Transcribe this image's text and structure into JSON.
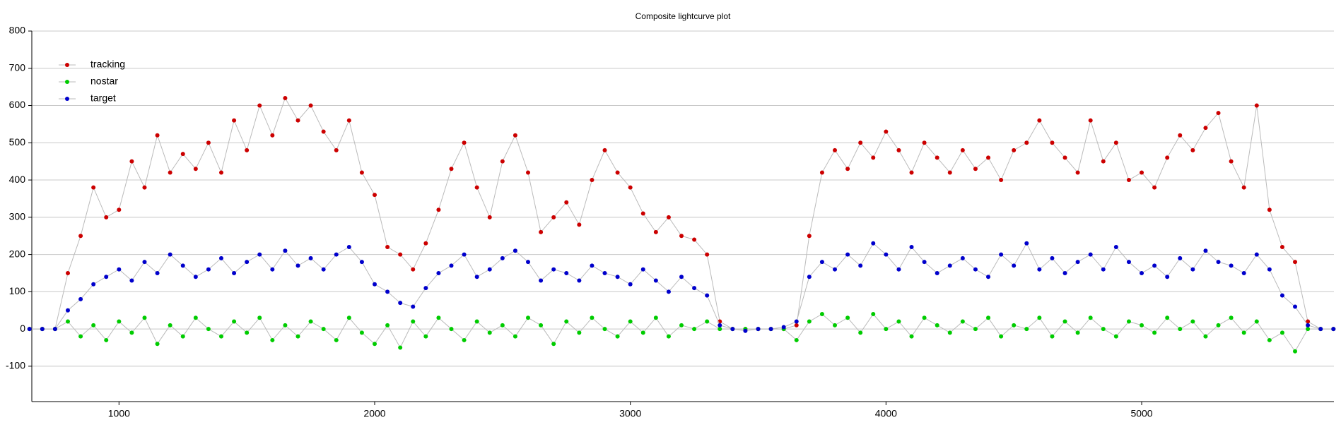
{
  "chart_data": {
    "type": "scatter",
    "title": "Composite lightcurve plot",
    "x": [
      650,
      700,
      750,
      800,
      850,
      900,
      950,
      1000,
      1050,
      1100,
      1150,
      1200,
      1250,
      1300,
      1350,
      1400,
      1450,
      1500,
      1550,
      1600,
      1650,
      1700,
      1750,
      1800,
      1850,
      1900,
      1950,
      2000,
      2050,
      2100,
      2150,
      2200,
      2250,
      2300,
      2350,
      2400,
      2450,
      2500,
      2550,
      2600,
      2650,
      2700,
      2750,
      2800,
      2850,
      2900,
      2950,
      3000,
      3050,
      3100,
      3150,
      3200,
      3250,
      3300,
      3350,
      3400,
      3450,
      3500,
      3550,
      3600,
      3650,
      3700,
      3750,
      3800,
      3850,
      3900,
      3950,
      4000,
      4050,
      4100,
      4150,
      4200,
      4250,
      4300,
      4350,
      4400,
      4450,
      4500,
      4550,
      4600,
      4650,
      4700,
      4750,
      4800,
      4850,
      4900,
      4950,
      5000,
      5050,
      5100,
      5150,
      5200,
      5250,
      5300,
      5350,
      5400,
      5450,
      5500,
      5550,
      5600,
      5650,
      5700,
      5750
    ],
    "series": [
      {
        "name": "tracking",
        "color": "#cc0000",
        "values": [
          0,
          0,
          0,
          150,
          250,
          380,
          300,
          320,
          450,
          380,
          520,
          420,
          470,
          430,
          500,
          420,
          560,
          480,
          600,
          520,
          620,
          560,
          600,
          530,
          480,
          560,
          420,
          360,
          220,
          200,
          160,
          230,
          320,
          430,
          500,
          380,
          300,
          450,
          520,
          420,
          260,
          300,
          340,
          280,
          400,
          480,
          420,
          380,
          310,
          260,
          300,
          250,
          240,
          200,
          20,
          0,
          0,
          0,
          0,
          0,
          10,
          250,
          420,
          480,
          430,
          500,
          460,
          530,
          480,
          420,
          500,
          460,
          420,
          480,
          430,
          460,
          400,
          480,
          500,
          560,
          500,
          460,
          420,
          560,
          450,
          500,
          400,
          420,
          380,
          460,
          520,
          480,
          540,
          580,
          450,
          380,
          600,
          320,
          220,
          180,
          20,
          0,
          0
        ]
      },
      {
        "name": "nostar",
        "color": "#00cc00",
        "values": [
          0,
          0,
          0,
          20,
          -20,
          10,
          -30,
          20,
          -10,
          30,
          -40,
          10,
          -20,
          30,
          0,
          -20,
          20,
          -10,
          30,
          -30,
          10,
          -20,
          20,
          0,
          -30,
          30,
          -10,
          -40,
          10,
          -50,
          20,
          -20,
          30,
          0,
          -30,
          20,
          -10,
          10,
          -20,
          30,
          10,
          -40,
          20,
          -10,
          30,
          0,
          -20,
          20,
          -10,
          30,
          -20,
          10,
          0,
          20,
          0,
          0,
          0,
          0,
          0,
          0,
          -30,
          20,
          40,
          10,
          30,
          -10,
          40,
          0,
          20,
          -20,
          30,
          10,
          -10,
          20,
          0,
          30,
          -20,
          10,
          0,
          30,
          -20,
          20,
          -10,
          30,
          0,
          -20,
          20,
          10,
          -10,
          30,
          0,
          20,
          -20,
          10,
          30,
          -10,
          20,
          -30,
          -10,
          -60,
          0,
          0,
          0
        ]
      },
      {
        "name": "target",
        "color": "#0000cc",
        "values": [
          0,
          0,
          0,
          50,
          80,
          120,
          140,
          160,
          130,
          180,
          150,
          200,
          170,
          140,
          160,
          190,
          150,
          180,
          200,
          160,
          210,
          170,
          190,
          160,
          200,
          220,
          180,
          120,
          100,
          70,
          60,
          110,
          150,
          170,
          200,
          140,
          160,
          190,
          210,
          180,
          130,
          160,
          150,
          130,
          170,
          150,
          140,
          120,
          160,
          130,
          100,
          140,
          110,
          90,
          10,
          0,
          -5,
          0,
          0,
          5,
          20,
          140,
          180,
          160,
          200,
          170,
          230,
          200,
          160,
          220,
          180,
          150,
          170,
          190,
          160,
          140,
          200,
          170,
          230,
          160,
          190,
          150,
          180,
          200,
          160,
          220,
          180,
          150,
          170,
          140,
          190,
          160,
          210,
          180,
          170,
          150,
          200,
          160,
          90,
          60,
          10,
          0,
          0
        ]
      }
    ],
    "xlim": [
      659,
      5752
    ],
    "xticks": [
      1000,
      2000,
      3000,
      4000,
      5000
    ],
    "ylim": [
      -195,
      800
    ],
    "yticks": [
      -100,
      0,
      100,
      200,
      300,
      400,
      500,
      600,
      700,
      800
    ],
    "grid": true,
    "legend": "upper left"
  }
}
